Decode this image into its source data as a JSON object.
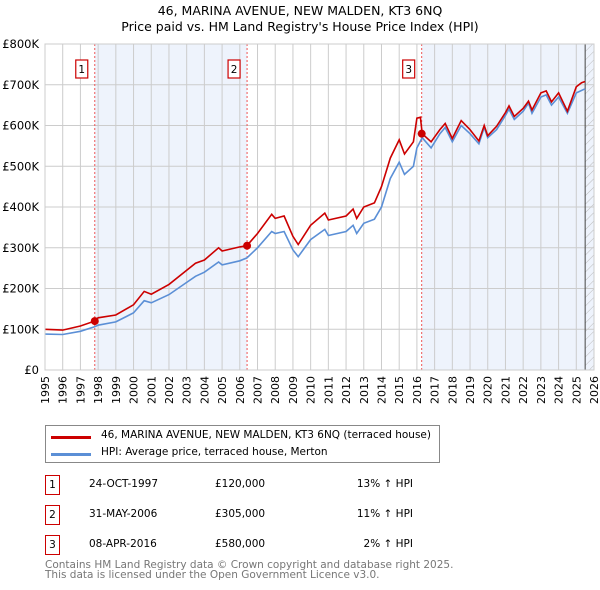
{
  "title": "46, MARINA AVENUE, NEW MALDEN, KT3 6NQ",
  "subtitle": "Price paid vs. HM Land Registry's House Price Index (HPI)",
  "chart_data": {
    "type": "line",
    "xlim": [
      1995,
      2026
    ],
    "ylim": [
      0,
      800000
    ],
    "yticks": [
      0,
      100000,
      200000,
      300000,
      400000,
      500000,
      600000,
      700000,
      800000
    ],
    "ytick_labels": [
      "£0",
      "£100K",
      "£200K",
      "£300K",
      "£400K",
      "£500K",
      "£600K",
      "£700K",
      "£800K"
    ],
    "xticks": [
      1995,
      1996,
      1997,
      1998,
      1999,
      2000,
      2001,
      2002,
      2003,
      2004,
      2005,
      2006,
      2007,
      2008,
      2009,
      2010,
      2011,
      2012,
      2013,
      2014,
      2015,
      2016,
      2017,
      2018,
      2019,
      2020,
      2021,
      2022,
      2023,
      2024,
      2025,
      2026
    ],
    "grid": true,
    "hatch_from": 2025.5,
    "series": [
      {
        "name": "46, MARINA AVENUE, NEW MALDEN, KT3 6NQ (terraced house)",
        "color": "#cc0000",
        "x": [
          1995,
          1996,
          1997,
          1997.8,
          1998,
          1999,
          2000,
          2000.6,
          2001,
          2002,
          2003,
          2003.5,
          2004,
          2004.8,
          2005,
          2006,
          2006.4,
          2007,
          2007.8,
          2008,
          2008.5,
          2009,
          2009.3,
          2010,
          2010.8,
          2011,
          2012,
          2012.4,
          2012.6,
          2013,
          2013.6,
          2014,
          2014.5,
          2015,
          2015.3,
          2015.8,
          2016,
          2016.2,
          2016.3,
          2016.8,
          2017.3,
          2017.6,
          2018,
          2018.5,
          2019,
          2019.5,
          2019.8,
          2020,
          2020.5,
          2021,
          2021.2,
          2021.5,
          2022,
          2022.3,
          2022.5,
          2023,
          2023.3,
          2023.6,
          2024,
          2024.5,
          2025,
          2025.3,
          2025.5
        ],
        "y": [
          100,
          98,
          108,
          120,
          128,
          135,
          160,
          193,
          186,
          210,
          245,
          262,
          270,
          300,
          292,
          302,
          305,
          335,
          382,
          372,
          378,
          328,
          308,
          355,
          385,
          368,
          378,
          395,
          372,
          400,
          410,
          450,
          520,
          565,
          530,
          560,
          618,
          620,
          580,
          560,
          590,
          605,
          568,
          612,
          590,
          562,
          600,
          575,
          598,
          632,
          648,
          622,
          642,
          660,
          638,
          680,
          685,
          658,
          680,
          635,
          695,
          705,
          708
        ]
      },
      {
        "name": "HPI: Average price, terraced house, Merton",
        "color": "#5b8fd6",
        "x": [
          1995,
          1996,
          1997,
          1997.8,
          1998,
          1999,
          2000,
          2000.6,
          2001,
          2002,
          2003,
          2003.5,
          2004,
          2004.8,
          2005,
          2006,
          2006.4,
          2007,
          2007.8,
          2008,
          2008.5,
          2009,
          2009.3,
          2010,
          2010.8,
          2011,
          2012,
          2012.4,
          2012.6,
          2013,
          2013.6,
          2014,
          2014.5,
          2015,
          2015.3,
          2015.8,
          2016,
          2016.3,
          2016.8,
          2017.3,
          2017.6,
          2018,
          2018.5,
          2019,
          2019.5,
          2019.8,
          2020,
          2020.5,
          2021,
          2021.2,
          2021.5,
          2022,
          2022.3,
          2022.5,
          2023,
          2023.3,
          2023.6,
          2024,
          2024.5,
          2025,
          2025.5
        ],
        "y": [
          88,
          87,
          95,
          106,
          110,
          118,
          140,
          170,
          165,
          185,
          215,
          230,
          240,
          265,
          258,
          268,
          275,
          300,
          340,
          335,
          340,
          295,
          278,
          320,
          345,
          330,
          340,
          355,
          335,
          360,
          370,
          400,
          470,
          510,
          480,
          500,
          545,
          570,
          545,
          580,
          595,
          560,
          600,
          580,
          555,
          595,
          570,
          590,
          625,
          640,
          615,
          635,
          655,
          630,
          670,
          675,
          650,
          670,
          630,
          680,
          690
        ]
      }
    ],
    "y_unit": "thousand GBP",
    "sales": [
      {
        "label": "1",
        "x": 1997.81,
        "y": 120
      },
      {
        "label": "2",
        "x": 2006.41,
        "y": 305
      },
      {
        "label": "3",
        "x": 2016.27,
        "y": 580
      }
    ]
  },
  "transactions": [
    {
      "num": "1",
      "date": "24-OCT-1997",
      "price": "£120,000",
      "hpi": "13% ↑ HPI"
    },
    {
      "num": "2",
      "date": "31-MAY-2006",
      "price": "£305,000",
      "hpi": "11% ↑ HPI"
    },
    {
      "num": "3",
      "date": "08-APR-2016",
      "price": "£580,000",
      "hpi": "2% ↑ HPI"
    }
  ],
  "footer": {
    "line1": "Contains HM Land Registry data © Crown copyright and database right 2025.",
    "line2": "This data is licensed under the Open Government Licence v3.0."
  }
}
